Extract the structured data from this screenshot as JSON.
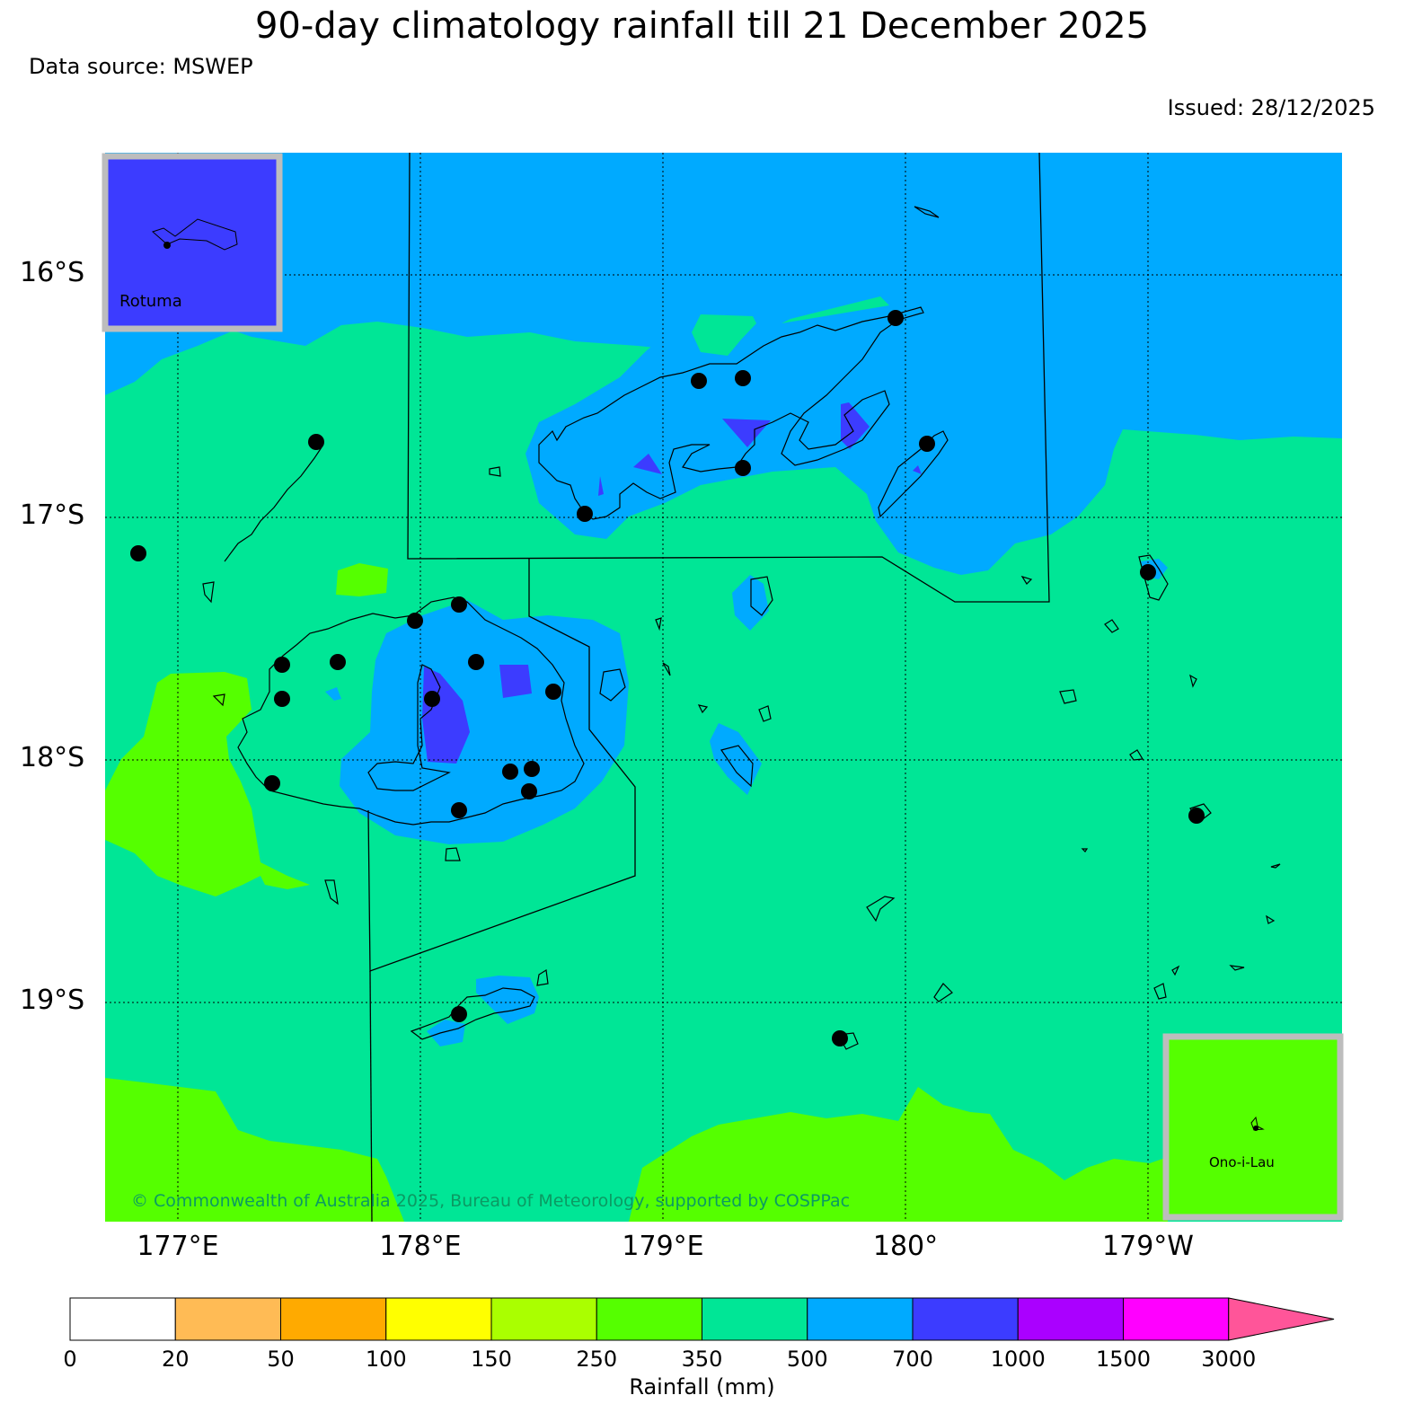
{
  "title": "90-day climatology rainfall till 21 December 2025",
  "data_source": "Data source: MSWEP",
  "issued": "Issued: 28/12/2025",
  "copyright": "© Commonwealth of Australia 2025, Bureau of Meteorology, supported by COSPPac",
  "lat_labels": [
    "16°S",
    "17°S",
    "18°S",
    "19°S"
  ],
  "lon_labels": [
    "177°E",
    "178°E",
    "179°E",
    "180°",
    "179°W"
  ],
  "insets": {
    "rotuma": "Rotuma",
    "ono_i_lau": "Ono-i-Lau"
  },
  "colorbar": {
    "title": "Rainfall (mm)",
    "ticks": [
      "0",
      "20",
      "50",
      "100",
      "150",
      "250",
      "350",
      "500",
      "700",
      "1000",
      "1500",
      "3000"
    ],
    "colors": [
      "#ffffff",
      "#ffbb55",
      "#ffaa00",
      "#ffff00",
      "#aaff00",
      "#55ff00",
      "#00e696",
      "#00aaff",
      "#3c3cff",
      "#aa00ff",
      "#ff00ff",
      "#ff5599"
    ]
  },
  "legend_colors": {
    "250-350": "#55ff00",
    "350-500": "#00e696",
    "500-700": "#00aaff",
    "700-1000": "#3c3cff"
  }
}
